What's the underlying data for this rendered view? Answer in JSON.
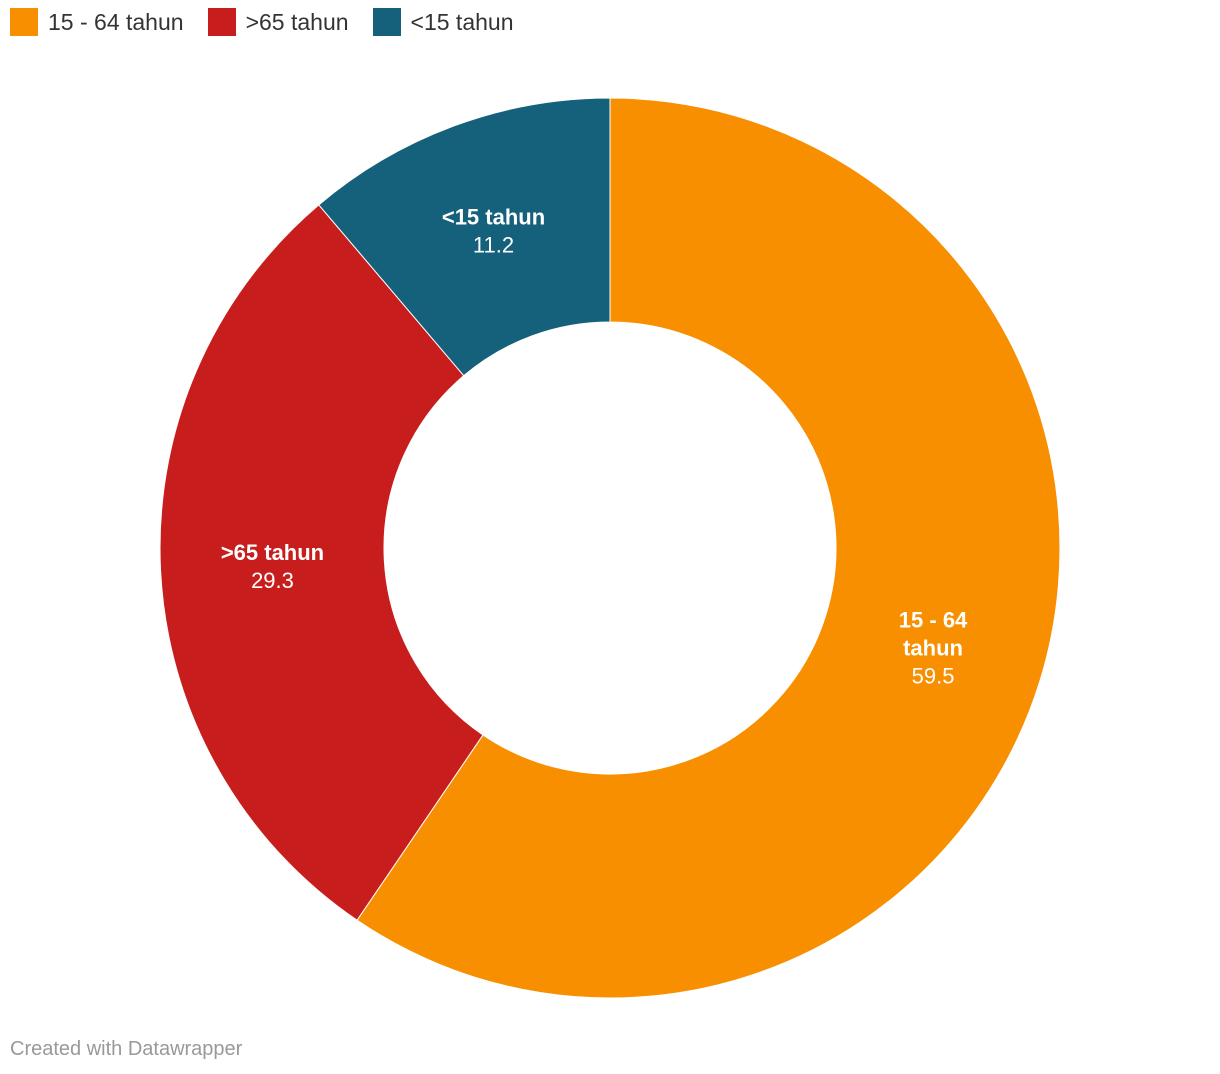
{
  "chart_data": {
    "type": "pie",
    "variant": "donut",
    "categories": [
      "15 - 64 tahun",
      ">65 tahun",
      "<15 tahun"
    ],
    "values": [
      59.5,
      29.3,
      11.2
    ],
    "colors": [
      "#f78f00",
      "#c71e1d",
      "#15607a"
    ],
    "slice_labels": [
      {
        "name_lines": [
          "15 - 64",
          "tahun"
        ],
        "value": "59.5"
      },
      {
        "name_lines": [
          ">65 tahun"
        ],
        "value": "29.3"
      },
      {
        "name_lines": [
          "<15 tahun"
        ],
        "value": "11.2"
      }
    ],
    "legend": {
      "position": "top-left",
      "items": [
        {
          "label": "15 - 64 tahun",
          "color": "#f78f00"
        },
        {
          "label": ">65 tahun",
          "color": "#c71e1d"
        },
        {
          "label": "<15 tahun",
          "color": "#15607a"
        }
      ]
    },
    "title": "",
    "xlabel": "",
    "ylabel": ""
  },
  "footer": {
    "credit": "Created with Datawrapper"
  }
}
